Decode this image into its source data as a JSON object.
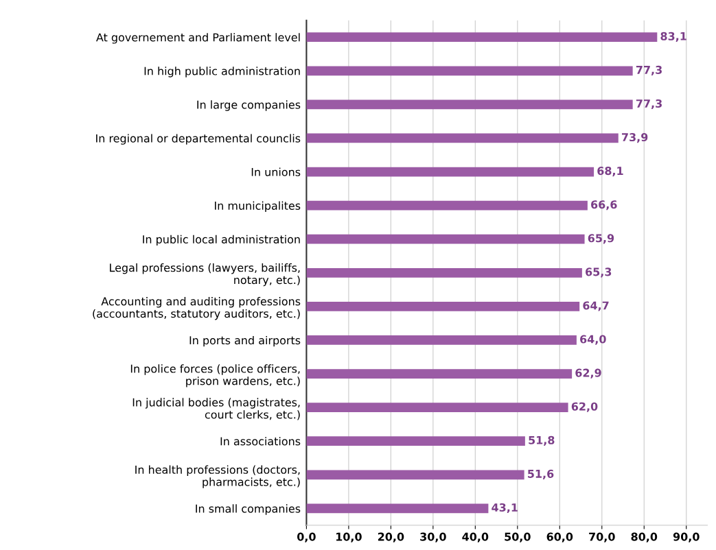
{
  "chart_data": {
    "type": "bar",
    "orientation": "horizontal",
    "categories": [
      "At governement and Parliament level",
      "In high public administration",
      "In large companies",
      "In regional or departemental counclis",
      "In unions",
      "In municipalites",
      "In public local administration",
      "Legal professions (lawyers, bailiffs,\nnotary, etc.)",
      "Accounting and auditing professions\n(accountants, statutory auditors, etc.)",
      "In ports and airports",
      "In police forces (police officers,\nprison wardens, etc.)",
      "In judicial bodies (magistrates,\ncourt clerks, etc.)",
      "In associations",
      "In health professions (doctors,\npharmacists, etc.)",
      "In small companies"
    ],
    "values": [
      83.1,
      77.3,
      77.3,
      73.9,
      68.1,
      66.6,
      65.9,
      65.3,
      64.7,
      64.0,
      62.9,
      62.0,
      51.8,
      51.6,
      43.1
    ],
    "value_labels": [
      "83,1",
      "77,3",
      "77,3",
      "73,9",
      "68,1",
      "66,6",
      "65,9",
      "65,3",
      "64,7",
      "64,0",
      "62,9",
      "62,0",
      "51,8",
      "51,6",
      "43,1"
    ],
    "color": "#9b5ba5",
    "xlim": [
      0,
      95
    ],
    "xticks": [
      {
        "value": 0,
        "label": "0,0"
      },
      {
        "value": 10,
        "label": "10,0"
      },
      {
        "value": 20,
        "label": "20,0"
      },
      {
        "value": 30,
        "label": "30,0"
      },
      {
        "value": 40,
        "label": "40,0"
      },
      {
        "value": 50,
        "label": "50,0"
      },
      {
        "value": 60,
        "label": "60,0"
      },
      {
        "value": 70,
        "label": "70,0"
      },
      {
        "value": 80,
        "label": "80,0"
      },
      {
        "value": 90,
        "label": "90,0"
      }
    ],
    "grid": "x"
  }
}
